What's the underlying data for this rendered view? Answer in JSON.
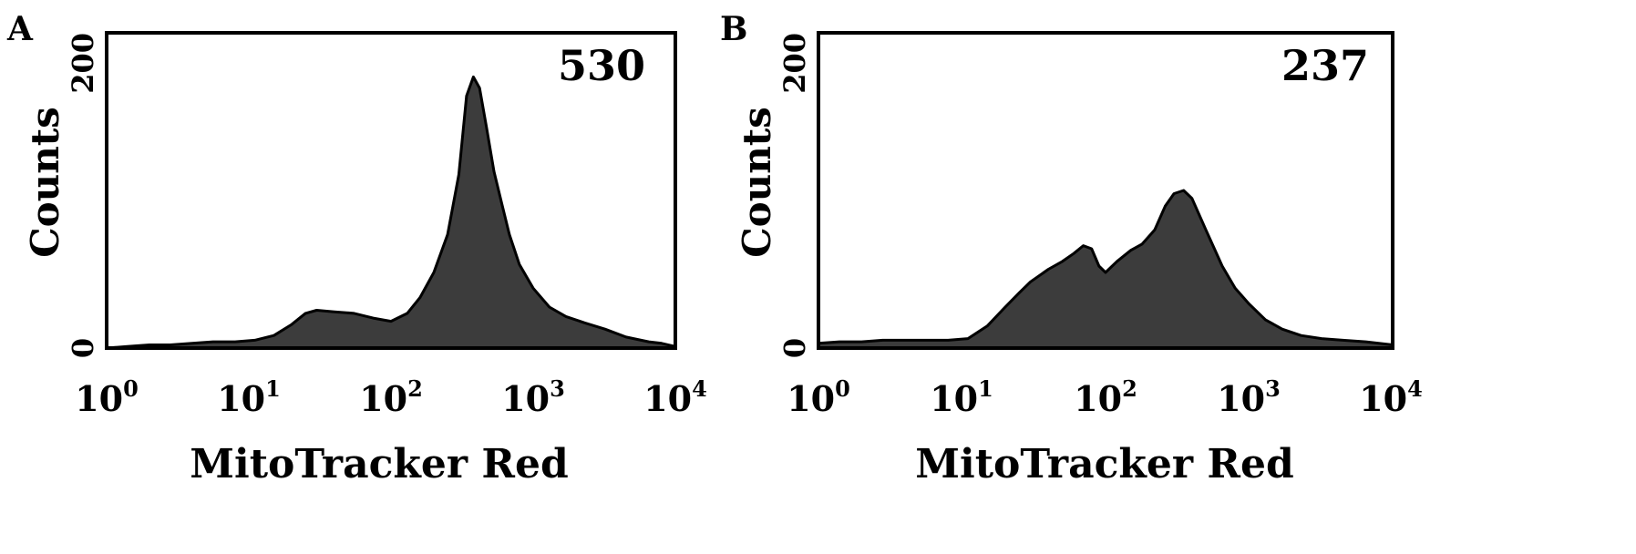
{
  "chart_data": [
    {
      "panel_label": "A",
      "type": "area",
      "value_label": "530",
      "xlabel": "MitoTracker Red",
      "ylabel": "Counts",
      "xscale": "log",
      "xlim": [
        1,
        10000
      ],
      "ylim": [
        0,
        200
      ],
      "x_ticks": [
        {
          "base": "10",
          "exp": "0"
        },
        {
          "base": "10",
          "exp": "1"
        },
        {
          "base": "10",
          "exp": "2"
        },
        {
          "base": "10",
          "exp": "3"
        },
        {
          "base": "10",
          "exp": "4"
        }
      ],
      "y_ticks": [
        "0",
        "200"
      ],
      "grid": false,
      "fill_color": "#3c3c3c",
      "x": [
        1,
        1.4,
        2,
        2.8,
        4,
        5.6,
        8,
        11,
        15,
        20,
        25,
        30,
        40,
        55,
        75,
        100,
        130,
        160,
        200,
        250,
        300,
        340,
        380,
        420,
        470,
        530,
        600,
        680,
        800,
        1000,
        1300,
        1700,
        2300,
        3200,
        4500,
        6500,
        8000,
        10000
      ],
      "y": [
        0,
        1,
        2,
        2,
        3,
        4,
        4,
        5,
        8,
        15,
        22,
        24,
        23,
        22,
        19,
        17,
        22,
        32,
        48,
        72,
        110,
        160,
        172,
        165,
        140,
        112,
        92,
        72,
        53,
        38,
        26,
        20,
        16,
        12,
        7,
        4,
        3,
        1
      ]
    },
    {
      "panel_label": "B",
      "type": "area",
      "value_label": "237",
      "xlabel": "MitoTracker Red",
      "ylabel": "Counts",
      "xscale": "log",
      "xlim": [
        1,
        10000
      ],
      "ylim": [
        0,
        200
      ],
      "x_ticks": [
        {
          "base": "10",
          "exp": "0"
        },
        {
          "base": "10",
          "exp": "1"
        },
        {
          "base": "10",
          "exp": "2"
        },
        {
          "base": "10",
          "exp": "3"
        },
        {
          "base": "10",
          "exp": "4"
        }
      ],
      "y_ticks": [
        "0",
        "200"
      ],
      "grid": false,
      "fill_color": "#3c3c3c",
      "x": [
        1,
        1.4,
        2,
        2.8,
        4,
        5.6,
        8,
        11,
        15,
        20,
        25,
        30,
        40,
        50,
        60,
        70,
        80,
        90,
        100,
        120,
        150,
        180,
        220,
        260,
        300,
        350,
        400,
        500,
        650,
        800,
        1000,
        1300,
        1700,
        2300,
        3200,
        4500,
        6500,
        8000,
        10000
      ],
      "y": [
        3,
        4,
        4,
        5,
        5,
        5,
        5,
        6,
        14,
        26,
        35,
        42,
        50,
        55,
        60,
        65,
        63,
        52,
        48,
        55,
        62,
        66,
        75,
        90,
        98,
        100,
        95,
        75,
        52,
        38,
        28,
        18,
        12,
        8,
        6,
        5,
        4,
        3,
        2
      ]
    }
  ]
}
